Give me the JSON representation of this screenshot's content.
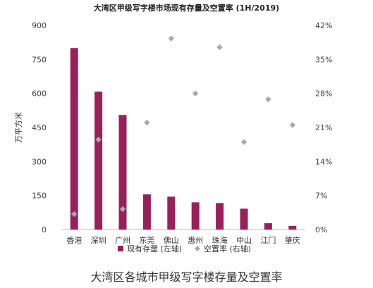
{
  "caption": "大湾区各城市甲级写字楼存量及空置率",
  "chart_data": {
    "type": "bar",
    "title": "大湾区甲级写字楼市场现有存量及空置率 (1H/2019)",
    "categories": [
      "香港",
      "深圳",
      "广州",
      "东莞",
      "佛山",
      "惠州",
      "珠海",
      "中山",
      "江门",
      "肇庆"
    ],
    "series": [
      {
        "name": "现有存量 (左轴)",
        "type": "bar",
        "axis": "left",
        "color": "#9b1f5a",
        "values": [
          800,
          608,
          505,
          155,
          145,
          120,
          117,
          92,
          28,
          16
        ]
      },
      {
        "name": "空置率 (右轴)",
        "type": "scatter",
        "axis": "right",
        "color": "#a7a7b6",
        "values": [
          3.2,
          18.5,
          4.2,
          22.0,
          39.3,
          28.0,
          37.5,
          18.0,
          26.8,
          21.5
        ]
      }
    ],
    "ylabel_left": "万平方米",
    "ylim_left": [
      0,
      900
    ],
    "yticks_left": [
      "0",
      "150",
      "300",
      "450",
      "600",
      "750",
      "900"
    ],
    "ylim_right": [
      0,
      42
    ],
    "yticks_right": [
      "0%",
      "7%",
      "14%",
      "21%",
      "28%",
      "35%",
      "42%"
    ],
    "grid": false,
    "legend_position": "bottom"
  }
}
